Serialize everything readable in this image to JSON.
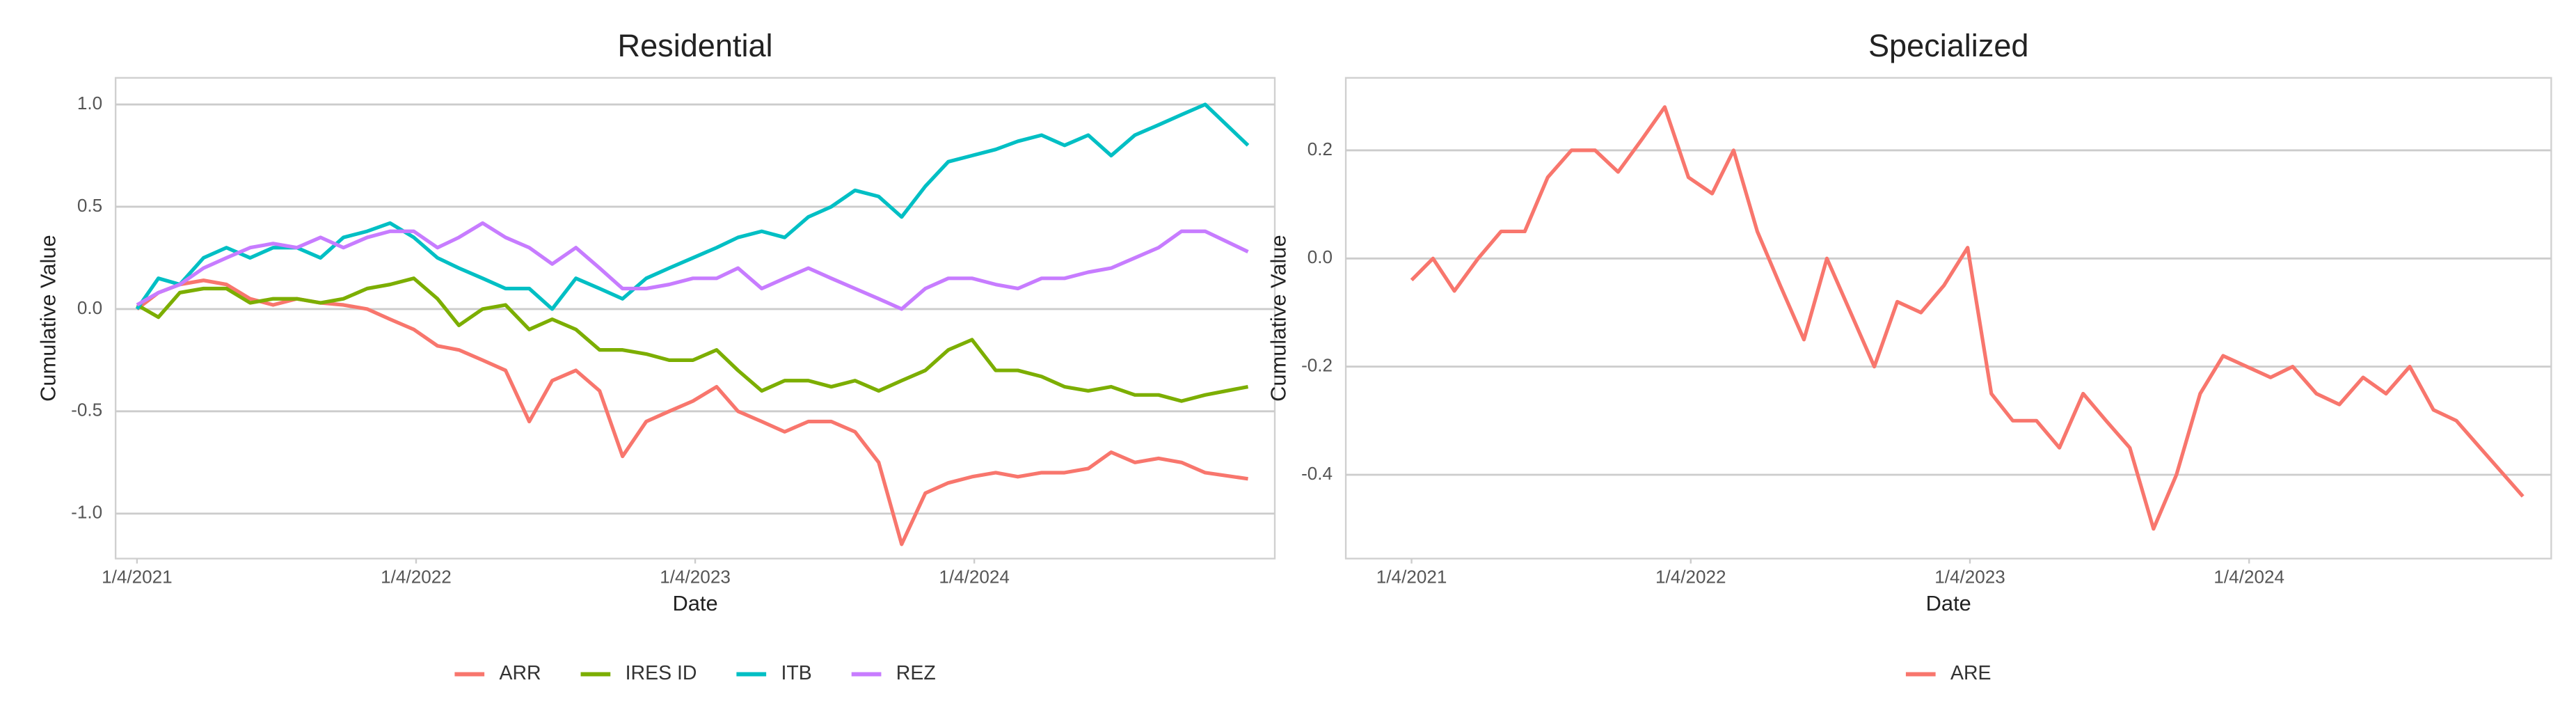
{
  "chart_data": [
    {
      "type": "line",
      "title": "Residential",
      "x_label": "Date",
      "y_label": "Cumulative Value",
      "grid": true,
      "legend": "bottom",
      "x": [
        "2021-01-04",
        "2021-02-01",
        "2021-03-01",
        "2021-04-01",
        "2021-05-01",
        "2021-06-01",
        "2021-07-01",
        "2021-08-01",
        "2021-09-01",
        "2021-10-01",
        "2021-11-01",
        "2021-12-01",
        "2022-01-01",
        "2022-02-01",
        "2022-03-01",
        "2022-04-01",
        "2022-05-01",
        "2022-06-01",
        "2022-07-01",
        "2022-08-01",
        "2022-09-01",
        "2022-10-01",
        "2022-11-01",
        "2022-12-01",
        "2023-01-01",
        "2023-02-01",
        "2023-03-01",
        "2023-04-01",
        "2023-05-01",
        "2023-06-01",
        "2023-07-01",
        "2023-08-01",
        "2023-09-01",
        "2023-10-01",
        "2023-11-01",
        "2023-12-01",
        "2024-01-01",
        "2024-02-01",
        "2024-03-01",
        "2024-04-01",
        "2024-05-01",
        "2024-06-01",
        "2024-07-01",
        "2024-08-01",
        "2024-09-01",
        "2024-10-01",
        "2024-11-01",
        "2024-12-27"
      ],
      "series": [
        {
          "name": "ARR",
          "color": "#F8766D",
          "values": [
            0,
            0.08,
            0.12,
            0.14,
            0.12,
            0.05,
            0.02,
            0.05,
            0.03,
            0.02,
            0.0,
            -0.05,
            -0.1,
            -0.18,
            -0.2,
            -0.25,
            -0.3,
            -0.55,
            -0.35,
            -0.3,
            -0.4,
            -0.72,
            -0.55,
            -0.5,
            -0.45,
            -0.38,
            -0.5,
            -0.55,
            -0.6,
            -0.55,
            -0.55,
            -0.6,
            -0.75,
            -1.15,
            -0.9,
            -0.85,
            -0.82,
            -0.8,
            -0.82,
            -0.8,
            -0.8,
            -0.78,
            -0.7,
            -0.75,
            -0.73,
            -0.75,
            -0.8,
            -0.83
          ]
        },
        {
          "name": "IRES ID",
          "color": "#7CAE00",
          "values": [
            0.02,
            -0.04,
            0.08,
            0.1,
            0.1,
            0.03,
            0.05,
            0.05,
            0.03,
            0.05,
            0.1,
            0.12,
            0.15,
            0.05,
            -0.08,
            0.0,
            0.02,
            -0.1,
            -0.05,
            -0.1,
            -0.2,
            -0.2,
            -0.22,
            -0.25,
            -0.25,
            -0.2,
            -0.3,
            -0.4,
            -0.35,
            -0.35,
            -0.38,
            -0.35,
            -0.4,
            -0.35,
            -0.3,
            -0.2,
            -0.15,
            -0.3,
            -0.3,
            -0.33,
            -0.38,
            -0.4,
            -0.38,
            -0.42,
            -0.42,
            -0.45,
            -0.42,
            -0.38
          ]
        },
        {
          "name": "ITB",
          "color": "#00BFC4",
          "values": [
            0.0,
            0.15,
            0.12,
            0.25,
            0.3,
            0.25,
            0.3,
            0.3,
            0.25,
            0.35,
            0.38,
            0.42,
            0.35,
            0.25,
            0.2,
            0.15,
            0.1,
            0.1,
            0.0,
            0.15,
            0.1,
            0.05,
            0.15,
            0.2,
            0.25,
            0.3,
            0.35,
            0.38,
            0.35,
            0.45,
            0.5,
            0.58,
            0.55,
            0.45,
            0.6,
            0.72,
            0.75,
            0.78,
            0.82,
            0.85,
            0.8,
            0.85,
            0.75,
            0.85,
            0.9,
            0.95,
            1.0,
            0.8
          ]
        },
        {
          "name": "REZ",
          "color": "#C77CFF",
          "values": [
            0.02,
            0.08,
            0.12,
            0.2,
            0.25,
            0.3,
            0.32,
            0.3,
            0.35,
            0.3,
            0.35,
            0.38,
            0.38,
            0.3,
            0.35,
            0.42,
            0.35,
            0.3,
            0.22,
            0.3,
            0.2,
            0.1,
            0.1,
            0.12,
            0.15,
            0.15,
            0.2,
            0.1,
            0.15,
            0.2,
            0.15,
            0.1,
            0.05,
            0.0,
            0.1,
            0.15,
            0.15,
            0.12,
            0.1,
            0.15,
            0.15,
            0.18,
            0.2,
            0.25,
            0.3,
            0.38,
            0.38,
            0.28
          ]
        }
      ],
      "xlim": [
        "2020-12-07",
        "2025-01-31"
      ],
      "ylim": [
        -1.22,
        1.13
      ],
      "xticks": [
        {
          "value": "2021-01-04",
          "label": "1/4/2021"
        },
        {
          "value": "2022-01-04",
          "label": "1/4/2022"
        },
        {
          "value": "2023-01-04",
          "label": "1/4/2023"
        },
        {
          "value": "2024-01-04",
          "label": "1/4/2024"
        }
      ],
      "yticks": [
        {
          "value": -1,
          "label": "-1.0"
        },
        {
          "value": -0.5,
          "label": "-0.5"
        },
        {
          "value": 0,
          "label": "0.0"
        },
        {
          "value": 0.5,
          "label": "0.5"
        },
        {
          "value": 1,
          "label": "1.0"
        }
      ]
    },
    {
      "type": "line",
      "title": "Specialized",
      "x_label": "Date",
      "y_label": "Cumulative Value",
      "grid": true,
      "legend": "bottom",
      "x": [
        "2021-01-04",
        "2021-02-01",
        "2021-03-01",
        "2021-04-01",
        "2021-05-01",
        "2021-06-01",
        "2021-07-01",
        "2021-08-01",
        "2021-09-01",
        "2021-10-01",
        "2021-11-01",
        "2021-12-01",
        "2022-01-01",
        "2022-02-01",
        "2022-03-01",
        "2022-04-01",
        "2022-05-01",
        "2022-06-01",
        "2022-07-01",
        "2022-08-01",
        "2022-09-01",
        "2022-10-01",
        "2022-11-01",
        "2022-12-01",
        "2023-01-01",
        "2023-02-01",
        "2023-03-01",
        "2023-04-01",
        "2023-05-01",
        "2023-06-01",
        "2023-07-01",
        "2023-08-01",
        "2023-09-01",
        "2023-10-01",
        "2023-11-01",
        "2023-12-01",
        "2024-01-01",
        "2024-02-01",
        "2024-03-01",
        "2024-04-01",
        "2024-05-01",
        "2024-06-01",
        "2024-07-01",
        "2024-08-01",
        "2024-09-01",
        "2024-10-01",
        "2024-11-01",
        "2024-12-27"
      ],
      "series": [
        {
          "name": "ARE",
          "color": "#F8766D",
          "values": [
            -0.04,
            0.0,
            -0.06,
            0.0,
            0.05,
            0.05,
            0.15,
            0.2,
            0.2,
            0.16,
            0.22,
            0.28,
            0.15,
            0.12,
            0.2,
            0.05,
            -0.05,
            -0.15,
            0.0,
            -0.1,
            -0.2,
            -0.08,
            -0.1,
            -0.05,
            0.02,
            -0.25,
            -0.3,
            -0.3,
            -0.35,
            -0.25,
            -0.3,
            -0.35,
            -0.5,
            -0.4,
            -0.25,
            -0.18,
            -0.2,
            -0.22,
            -0.2,
            -0.25,
            -0.27,
            -0.22,
            -0.25,
            -0.2,
            -0.28,
            -0.3,
            -0.35,
            -0.44
          ]
        }
      ],
      "xlim": [
        "2020-10-10",
        "2025-02-02"
      ],
      "ylim": [
        -0.555,
        0.334
      ],
      "xticks": [
        {
          "value": "2021-01-04",
          "label": "1/4/2021"
        },
        {
          "value": "2022-01-04",
          "label": "1/4/2022"
        },
        {
          "value": "2023-01-04",
          "label": "1/4/2023"
        },
        {
          "value": "2024-01-04",
          "label": "1/4/2024"
        }
      ],
      "yticks": [
        {
          "value": -0.4,
          "label": "-0.4"
        },
        {
          "value": -0.2,
          "label": "-0.2"
        },
        {
          "value": 0,
          "label": "0.0"
        },
        {
          "value": 0.2,
          "label": "0.2"
        }
      ]
    }
  ]
}
